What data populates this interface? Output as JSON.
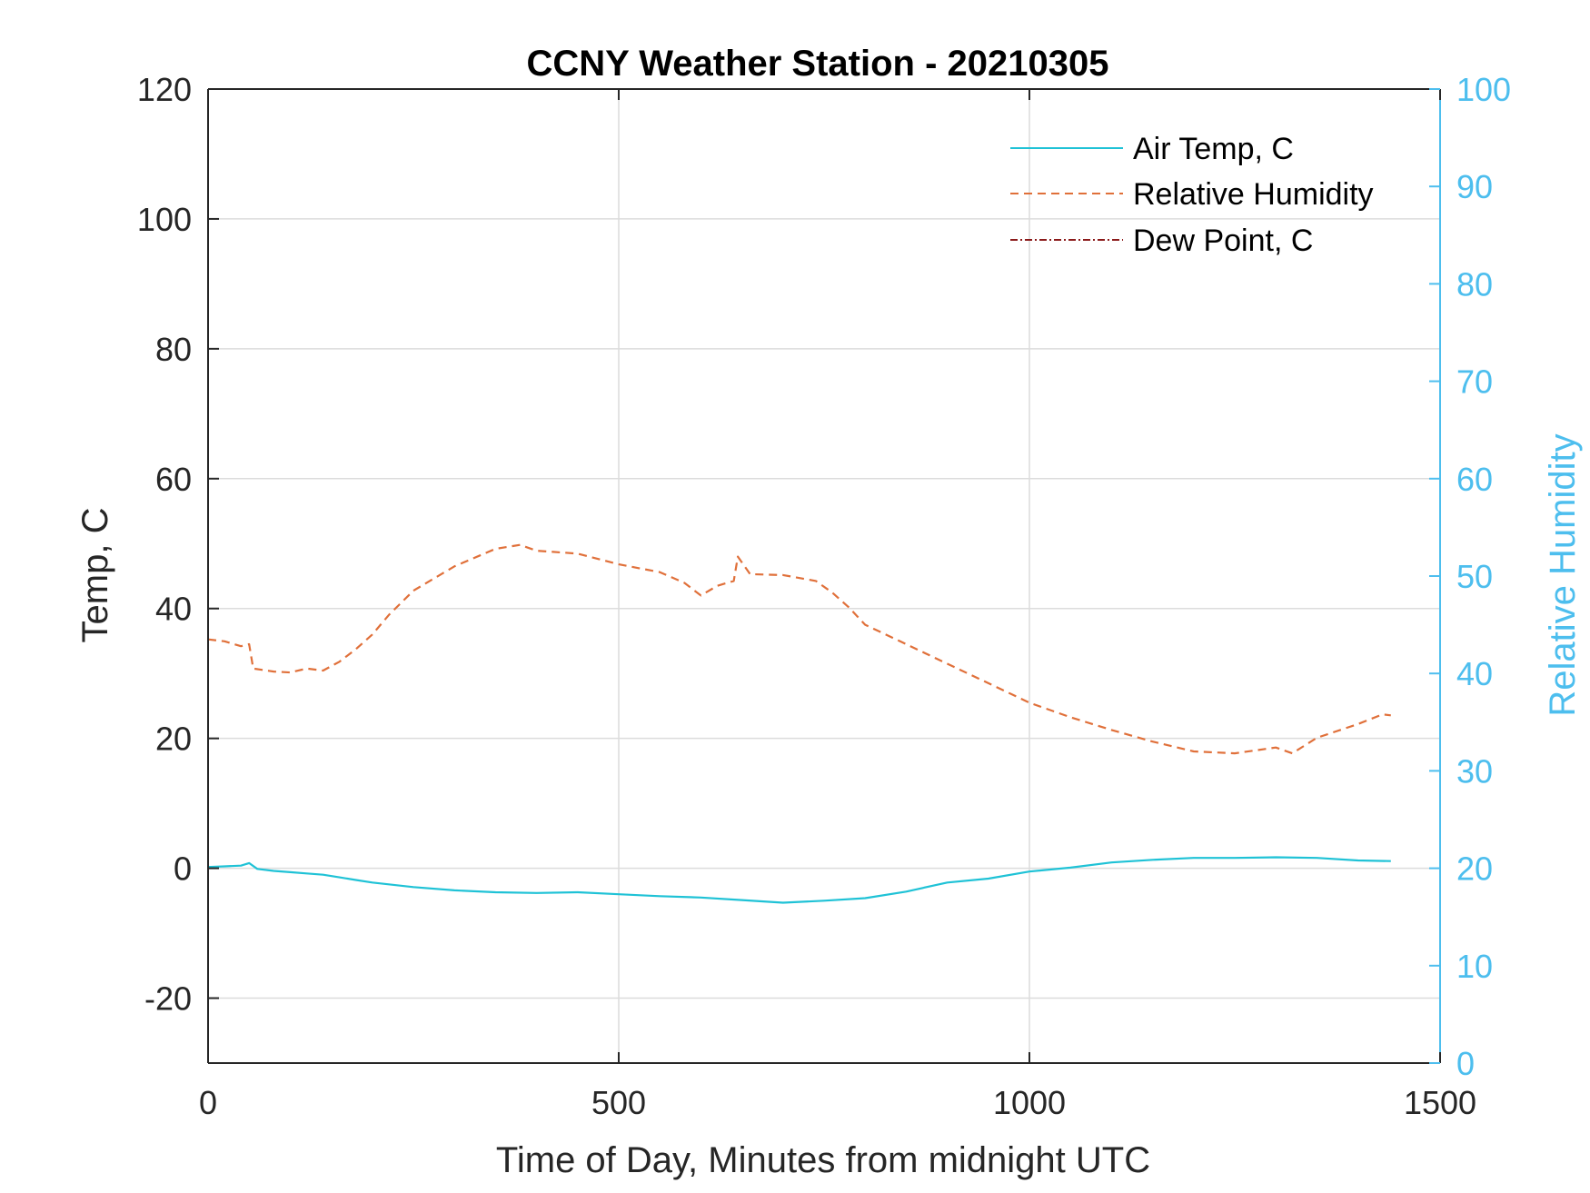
{
  "chart_data": {
    "type": "line",
    "title": "CCNY Weather Station - 20210305",
    "xlabel": "Time of Day, Minutes from midnight UTC",
    "ylabel_left": "Temp, C",
    "ylabel_right": "Relative Humidity",
    "xlim": [
      0,
      1500
    ],
    "ylim_left": [
      -30,
      120
    ],
    "ylim_right": [
      0,
      100
    ],
    "xticks": [
      "0",
      "500",
      "1000",
      "1500"
    ],
    "yticks_left": [
      "-20",
      "0",
      "20",
      "40",
      "60",
      "80",
      "100",
      "120"
    ],
    "yticks_right": [
      "0",
      "10",
      "20",
      "30",
      "40",
      "50",
      "60",
      "70",
      "80",
      "90",
      "100"
    ],
    "grid": true,
    "legend_position": "top-right",
    "colors": {
      "air_temp": "#1fc2d6",
      "relative_humidity": "#e0703a",
      "dew_point": "#8b1a1a",
      "right_axis": "#4dbeee"
    },
    "series": [
      {
        "name": "Air Temp, C",
        "axis": "left",
        "style": "solid",
        "x": [
          0,
          20,
          40,
          50,
          60,
          80,
          100,
          120,
          140,
          160,
          180,
          200,
          250,
          300,
          350,
          400,
          450,
          500,
          550,
          600,
          650,
          700,
          750,
          800,
          850,
          900,
          950,
          1000,
          1050,
          1100,
          1150,
          1200,
          1250,
          1300,
          1350,
          1400,
          1440
        ],
        "y": [
          0.2,
          0.3,
          0.4,
          0.8,
          -0.1,
          -0.4,
          -0.6,
          -0.8,
          -1.0,
          -1.4,
          -1.8,
          -2.2,
          -2.9,
          -3.4,
          -3.7,
          -3.8,
          -3.7,
          -4.0,
          -4.3,
          -4.5,
          -4.9,
          -5.3,
          -5.0,
          -4.6,
          -3.6,
          -2.2,
          -1.6,
          -0.5,
          0.1,
          0.9,
          1.3,
          1.6,
          1.6,
          1.7,
          1.6,
          1.2,
          1.1
        ]
      },
      {
        "name": "Relative Humidity",
        "axis": "right",
        "style": "dashed",
        "x": [
          0,
          20,
          40,
          50,
          55,
          80,
          100,
          120,
          140,
          160,
          180,
          200,
          220,
          250,
          300,
          350,
          380,
          400,
          450,
          500,
          550,
          580,
          600,
          620,
          640,
          645,
          660,
          700,
          740,
          760,
          780,
          800,
          850,
          900,
          950,
          1000,
          1050,
          1100,
          1150,
          1200,
          1250,
          1300,
          1320,
          1350,
          1400,
          1430,
          1440
        ],
        "y": [
          43.5,
          43.3,
          42.8,
          43.0,
          40.5,
          40.2,
          40.1,
          40.5,
          40.3,
          41.2,
          42.5,
          44.0,
          46.0,
          48.5,
          51.0,
          52.8,
          53.2,
          52.6,
          52.3,
          51.2,
          50.4,
          49.3,
          48.0,
          49.0,
          49.5,
          52.0,
          50.2,
          50.1,
          49.5,
          48.3,
          46.8,
          45.0,
          43.0,
          41.0,
          39.0,
          37.0,
          35.5,
          34.2,
          33.0,
          32.0,
          31.8,
          32.4,
          31.8,
          33.4,
          34.8,
          35.8,
          35.7
        ]
      },
      {
        "name": "Dew Point, C",
        "axis": "left",
        "style": "dash-dot",
        "x": [],
        "y": []
      }
    ]
  }
}
